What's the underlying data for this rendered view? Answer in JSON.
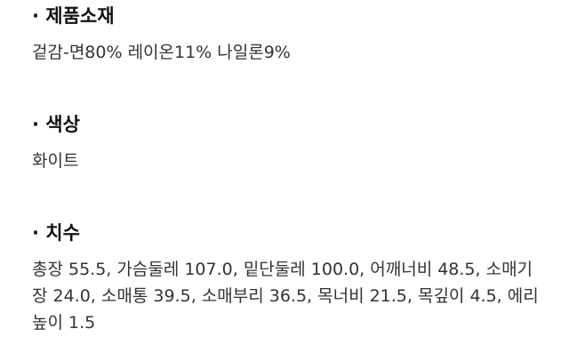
{
  "sections": [
    {
      "title": "· 제품소재",
      "body": "겉감-면80% 레이온11% 나일론9%"
    },
    {
      "title": "· 색상",
      "body": "화이트"
    },
    {
      "title": "· 치수",
      "body": "총장 55.5, 가슴둘레 107.0, 밑단둘레 100.0, 어깨너비 48.5, 소매기장 24.0, 소매통 39.5, 소매부리 36.5, 목너비 21.5, 목깊이 4.5, 에리높이 1.5"
    }
  ]
}
